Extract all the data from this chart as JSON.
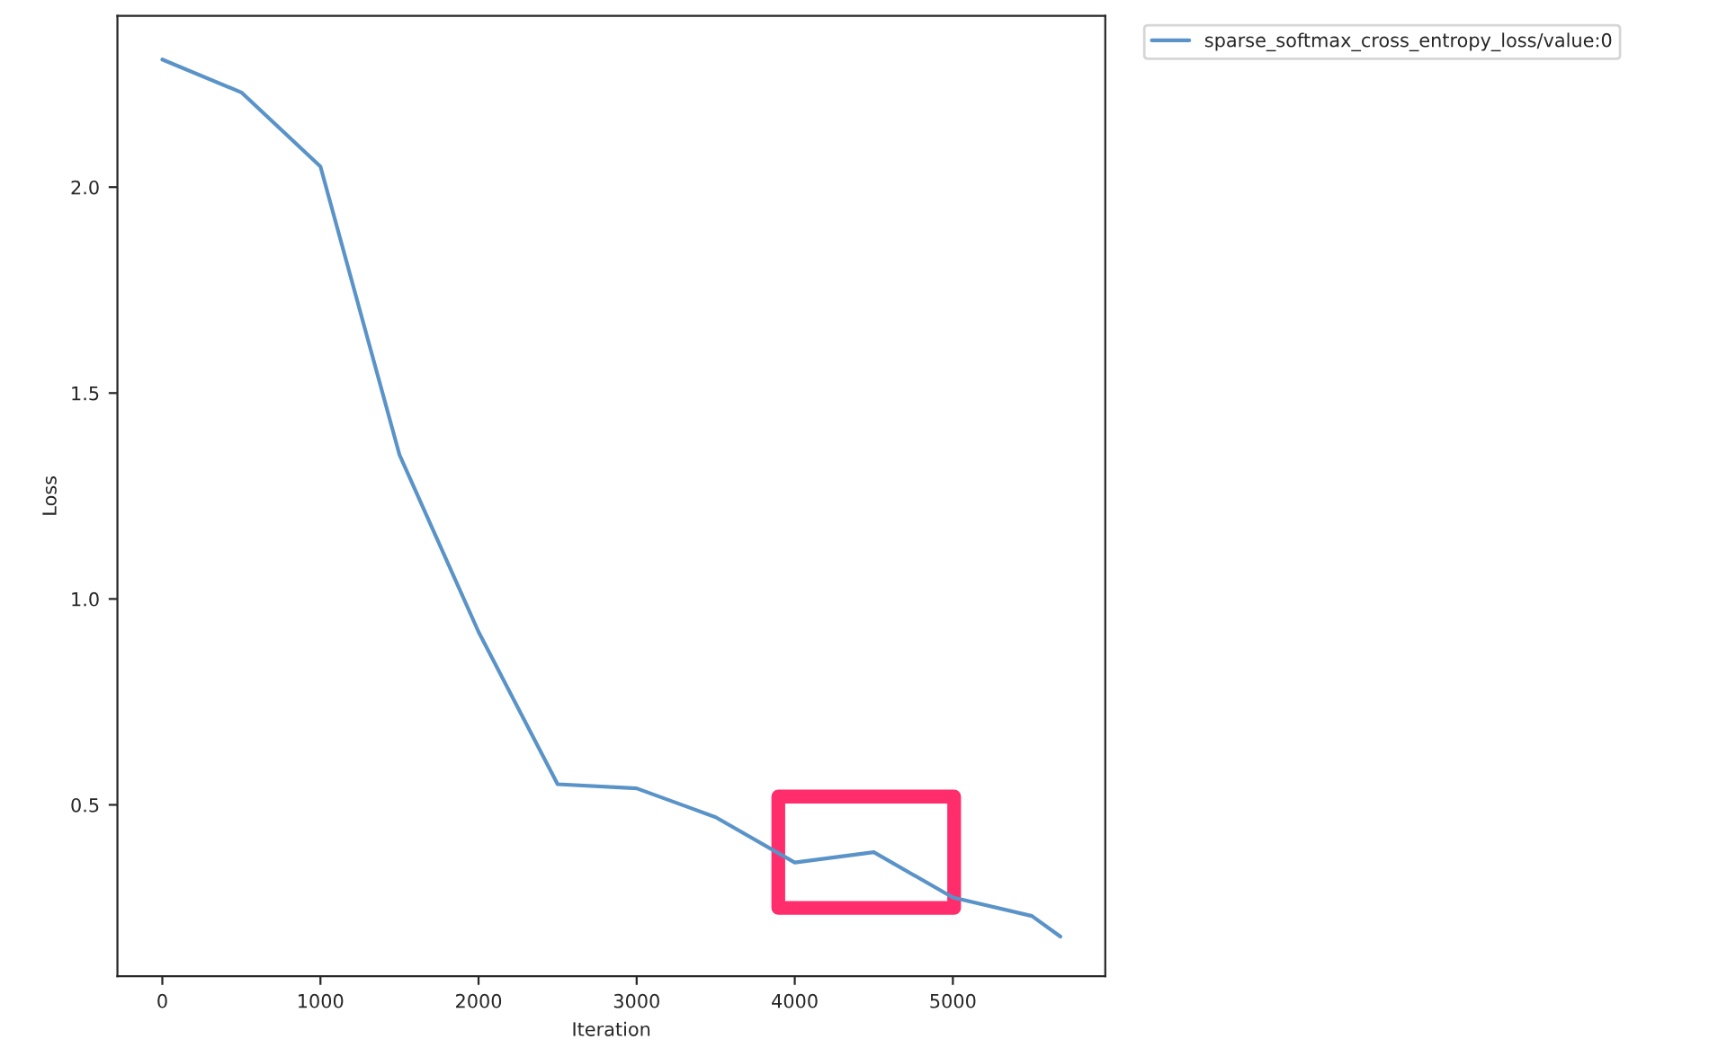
{
  "chart_data": {
    "type": "line",
    "xlabel": "Iteration",
    "ylabel": "Loss",
    "x": [
      0,
      500,
      1000,
      1500,
      2000,
      2500,
      3000,
      3500,
      4000,
      4500,
      5000,
      5500,
      5680
    ],
    "series": [
      {
        "name": "sparse_softmax_cross_entropy_loss/value:0",
        "color": "#5a93c8",
        "values": [
          2.31,
          2.23,
          2.05,
          1.35,
          0.92,
          0.55,
          0.54,
          0.47,
          0.36,
          0.385,
          0.275,
          0.23,
          0.18
        ]
      }
    ],
    "xlim": [
      -284,
      5964
    ],
    "ylim": [
      0.084,
      2.416
    ],
    "xticks": [
      0,
      1000,
      2000,
      3000,
      4000,
      5000
    ],
    "yticks": [
      0.5,
      {
        "value": 1.0,
        "label": "1.0"
      },
      1.5,
      {
        "value": 2.0,
        "label": "2.0"
      }
    ],
    "grid": false,
    "legend": "top right"
  }
}
